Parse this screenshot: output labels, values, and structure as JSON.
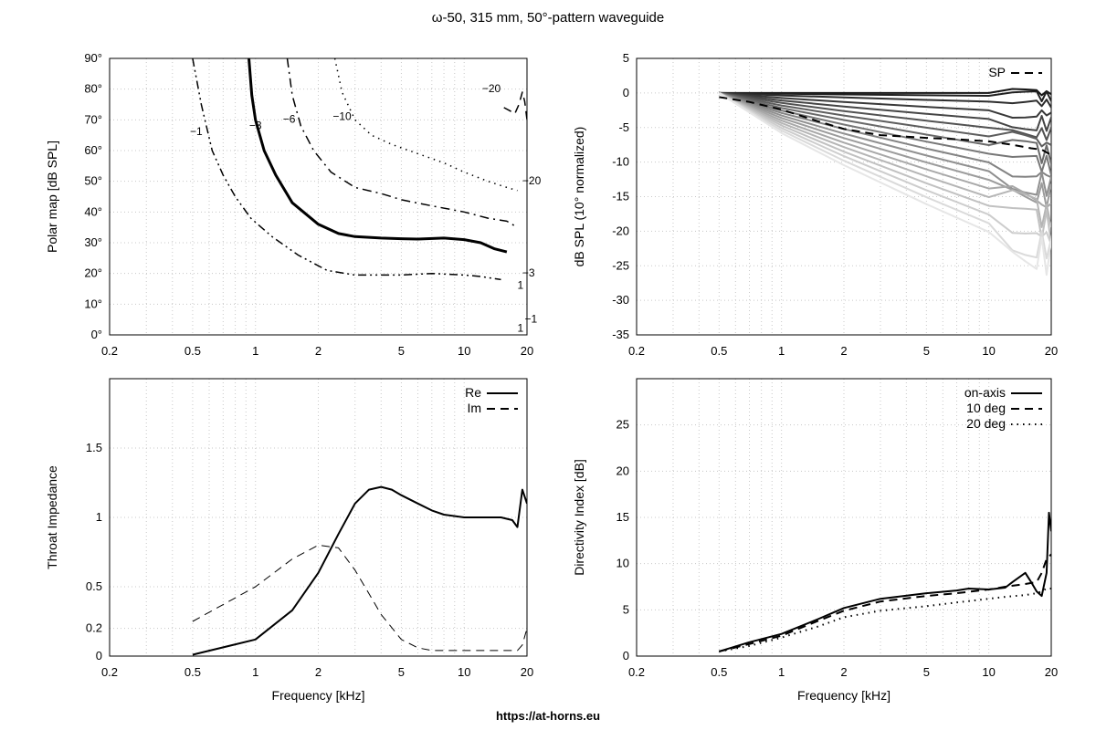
{
  "page": {
    "title": "ω-50, 315 mm, 50°-pattern waveguide",
    "footer": "https://at-horns.eu"
  },
  "chart_data": [
    {
      "id": "polar",
      "type": "line",
      "ylabel": "Polar map [dB SPL]",
      "xscale": "log",
      "xlim": [
        0.2,
        20
      ],
      "ylim": [
        0,
        90
      ],
      "xticks": [
        0.2,
        0.5,
        1,
        2,
        5,
        10,
        20
      ],
      "yticks": [
        0,
        10,
        20,
        30,
        40,
        50,
        60,
        70,
        80,
        90
      ],
      "ytick_labels": [
        "0°",
        "10°",
        "20°",
        "30°",
        "40°",
        "50°",
        "60°",
        "70°",
        "80°",
        "90°"
      ],
      "series": [
        {
          "level": "-1",
          "label": "−1",
          "style": "dashdotdot",
          "width": 1.5,
          "x": [
            0.5,
            0.55,
            0.62,
            0.7,
            0.8,
            0.95,
            1.2,
            1.6,
            2.2,
            3,
            5,
            7,
            10,
            12,
            15
          ],
          "y": [
            90,
            75,
            60,
            52,
            45,
            38,
            32,
            26,
            21,
            19.5,
            19.5,
            20,
            19.5,
            19,
            18
          ],
          "label_at": [
            0.52,
            65
          ]
        },
        {
          "level": "-3",
          "label": "−3",
          "style": "solid",
          "width": 3,
          "x": [
            0.93,
            0.96,
            1.0,
            1.1,
            1.25,
            1.5,
            2,
            2.5,
            3,
            4,
            5,
            6,
            8,
            10,
            12,
            14,
            16
          ],
          "y": [
            90,
            78,
            70,
            60,
            52,
            43,
            36,
            33,
            32,
            31.5,
            31.3,
            31.2,
            31.5,
            31,
            30,
            28,
            27
          ],
          "label_at": [
            1.0,
            67
          ]
        },
        {
          "level": "-6",
          "label": "−6",
          "style": "dashdot",
          "width": 1.5,
          "x": [
            1.42,
            1.5,
            1.65,
            1.9,
            2.3,
            3,
            4,
            5,
            7,
            10,
            13,
            16,
            18
          ],
          "y": [
            90,
            78,
            68,
            60,
            53,
            48,
            46,
            44,
            42,
            40,
            38,
            37,
            35
          ],
          "label_at": [
            1.45,
            69
          ]
        },
        {
          "level": "-10",
          "label": "−10",
          "style": "dotted",
          "width": 1.5,
          "x": [
            2.4,
            2.6,
            3,
            3.6,
            4.5,
            6,
            8,
            10,
            13,
            16,
            18
          ],
          "y": [
            90,
            79,
            70,
            65,
            62,
            59,
            56,
            53,
            50,
            48,
            47
          ],
          "label_at": [
            2.6,
            70
          ]
        },
        {
          "level": "-20",
          "label": "−20",
          "style": "dashed",
          "width": 1.5,
          "x": [
            15.5,
            16.5,
            17.5,
            18.3,
            19,
            19.5,
            20
          ],
          "y": [
            74,
            73,
            72,
            75,
            79,
            76,
            70
          ],
          "label_at": [
            13.5,
            79
          ]
        }
      ],
      "extra_labels": [
        {
          "text": "−20",
          "x": 19.0,
          "y": 49
        },
        {
          "text": "−3",
          "x": 19.0,
          "y": 19
        },
        {
          "text": "1",
          "x": 18.0,
          "y": 15
        },
        {
          "text": "−1",
          "x": 19.5,
          "y": 4
        },
        {
          "text": "1",
          "x": 18.0,
          "y": 1
        }
      ]
    },
    {
      "id": "normalized",
      "type": "line",
      "ylabel": "dB SPL (10° normalized)",
      "xscale": "log",
      "xlim": [
        0.2,
        20
      ],
      "ylim": [
        -35,
        5
      ],
      "xticks": [
        0.2,
        0.5,
        1,
        2,
        5,
        10,
        20
      ],
      "yticks": [
        -35,
        -30,
        -25,
        -20,
        -15,
        -10,
        -5,
        0,
        5
      ],
      "legend": [
        {
          "name": "SP",
          "style": "dashed"
        }
      ],
      "x": [
        0.5,
        1,
        2,
        5,
        10,
        13,
        15,
        17,
        18,
        19,
        20
      ],
      "fan_end": [
        0,
        -0.5,
        -1.5,
        -3,
        -4.5,
        -6,
        -7.5,
        -9,
        -10.5,
        -12,
        -13.5,
        -15,
        -16.5,
        -18,
        -19.5,
        -21,
        -22.5,
        -24
      ],
      "sp": {
        "x": [
          0.5,
          0.7,
          1,
          1.5,
          2,
          3,
          5,
          7,
          10,
          13,
          16,
          18,
          20
        ],
        "y": [
          -0.6,
          -1.3,
          -2.4,
          -4.1,
          -5.2,
          -6.1,
          -6.5,
          -6.7,
          -7,
          -7.5,
          -8,
          -8.2,
          -9
        ]
      }
    },
    {
      "id": "impedance",
      "type": "line",
      "ylabel": "Throat Impedance",
      "xlabel": "Frequency [kHz]",
      "xscale": "log",
      "xlim": [
        0.2,
        20
      ],
      "ylim": [
        0,
        2
      ],
      "xticks": [
        0.2,
        0.5,
        1,
        2,
        5,
        10,
        20
      ],
      "yticks": [
        0,
        0.2,
        0.5,
        1,
        1.5
      ],
      "legend": [
        {
          "name": "Re",
          "style": "solid"
        },
        {
          "name": "Im",
          "style": "dashed"
        }
      ],
      "series": [
        {
          "name": "Re",
          "style": "solid",
          "x": [
            0.5,
            1,
            1.5,
            2,
            2.5,
            3,
            3.5,
            4,
            4.5,
            5,
            6,
            7,
            8,
            10,
            12,
            15,
            17,
            18,
            19,
            20
          ],
          "y": [
            0.01,
            0.12,
            0.33,
            0.6,
            0.88,
            1.1,
            1.2,
            1.22,
            1.2,
            1.16,
            1.1,
            1.05,
            1.02,
            1.0,
            1.0,
            1.0,
            0.98,
            0.93,
            1.2,
            1.1
          ]
        },
        {
          "name": "Im",
          "style": "dashed",
          "x": [
            0.5,
            1,
            1.5,
            2,
            2.5,
            3,
            3.5,
            4,
            5,
            6,
            7,
            8,
            10,
            15,
            18,
            19,
            20
          ],
          "y": [
            0.25,
            0.5,
            0.7,
            0.8,
            0.78,
            0.62,
            0.45,
            0.3,
            0.12,
            0.06,
            0.04,
            0.04,
            0.04,
            0.04,
            0.04,
            0.08,
            0.2
          ]
        }
      ]
    },
    {
      "id": "directivity",
      "type": "line",
      "ylabel": "Directivity Index [dB]",
      "xlabel": "Frequency [kHz]",
      "xscale": "log",
      "xlim": [
        0.2,
        20
      ],
      "ylim": [
        0,
        30
      ],
      "xticks": [
        0.2,
        0.5,
        1,
        2,
        5,
        10,
        20
      ],
      "yticks": [
        0,
        5,
        10,
        15,
        20,
        25
      ],
      "legend": [
        {
          "name": "on-axis",
          "style": "solid"
        },
        {
          "name": "10 deg",
          "style": "dashed"
        },
        {
          "name": "20 deg",
          "style": "dotted"
        }
      ],
      "series": [
        {
          "name": "on-axis",
          "style": "solid",
          "x": [
            0.5,
            0.7,
            1,
            1.5,
            2,
            3,
            5,
            7,
            8,
            10,
            12,
            13,
            15,
            16,
            17,
            18,
            19,
            19.5,
            20
          ],
          "y": [
            0.5,
            1.5,
            2.4,
            4,
            5.2,
            6.2,
            6.8,
            7.1,
            7.3,
            7.2,
            7.4,
            8,
            9,
            8,
            7,
            6.5,
            9,
            15.5,
            13.5
          ]
        },
        {
          "name": "10 deg",
          "style": "dashed",
          "x": [
            0.5,
            0.7,
            1,
            1.5,
            2,
            3,
            5,
            7,
            10,
            12,
            15,
            17,
            18,
            19,
            20
          ],
          "y": [
            0.5,
            1.3,
            2.2,
            3.8,
            4.9,
            5.9,
            6.5,
            6.8,
            7.2,
            7.5,
            7.8,
            8,
            9,
            10.5,
            11
          ]
        },
        {
          "name": "20 deg",
          "style": "dotted",
          "x": [
            0.5,
            0.7,
            1,
            1.5,
            2,
            3,
            5,
            7,
            10,
            12,
            15,
            17,
            18,
            19,
            20
          ],
          "y": [
            0.5,
            1.1,
            2.0,
            3.2,
            4.2,
            4.9,
            5.4,
            5.8,
            6.2,
            6.4,
            6.6,
            6.8,
            7.0,
            7.3,
            7.3
          ]
        }
      ]
    }
  ]
}
